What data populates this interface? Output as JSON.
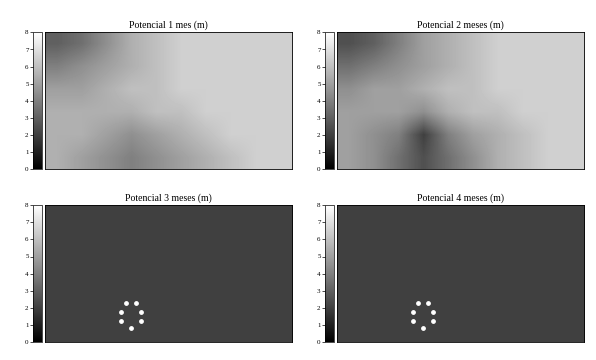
{
  "chart_data": [
    {
      "type": "heatmap",
      "title": "Potencial 1 mes (m)",
      "tick_labels": false,
      "cells": [
        [
          3.0,
          3.5,
          4.5,
          5.5,
          6.0,
          6.5,
          6.5,
          6.5,
          6.5,
          6.5
        ],
        [
          4.0,
          4.5,
          5.0,
          5.5,
          6.0,
          6.5,
          6.5,
          6.5,
          6.5,
          6.5
        ],
        [
          5.0,
          5.0,
          5.5,
          6.0,
          6.0,
          6.5,
          6.5,
          6.5,
          6.5,
          6.5
        ],
        [
          5.5,
          5.5,
          5.5,
          5.5,
          6.0,
          6.0,
          6.5,
          6.5,
          6.5,
          6.5
        ],
        [
          5.5,
          5.5,
          5.0,
          4.5,
          5.0,
          5.5,
          6.0,
          6.5,
          6.5,
          6.5
        ],
        [
          5.5,
          5.0,
          4.5,
          4.0,
          4.5,
          5.0,
          5.5,
          6.0,
          6.5,
          6.5
        ]
      ],
      "colorbar": {
        "range": [
          0,
          8
        ],
        "ticks": [
          0,
          1,
          2,
          3,
          4,
          5,
          6,
          7,
          8
        ]
      }
    },
    {
      "type": "heatmap",
      "title": "Potencial 2 meses (m)",
      "tick_labels": false,
      "cells": [
        [
          2.5,
          3.0,
          4.0,
          5.0,
          5.5,
          6.0,
          6.5,
          6.5,
          6.5,
          6.5
        ],
        [
          3.5,
          4.0,
          4.5,
          5.0,
          5.5,
          6.0,
          6.5,
          6.5,
          6.5,
          6.5
        ],
        [
          4.5,
          5.0,
          5.0,
          5.5,
          6.0,
          6.0,
          6.5,
          6.5,
          6.5,
          6.5
        ],
        [
          5.0,
          5.0,
          5.0,
          4.5,
          5.5,
          6.0,
          6.0,
          6.5,
          6.5,
          6.5
        ],
        [
          5.0,
          4.5,
          4.0,
          2.0,
          4.0,
          5.0,
          5.5,
          6.0,
          6.5,
          6.5
        ],
        [
          5.0,
          4.5,
          3.5,
          2.5,
          3.5,
          4.5,
          5.5,
          6.0,
          6.5,
          6.5
        ]
      ],
      "colorbar": {
        "range": [
          0,
          8
        ],
        "ticks": [
          0,
          1,
          2,
          3,
          4,
          5,
          6,
          7,
          8
        ]
      }
    },
    {
      "type": "heatmap",
      "title": "Potencial 3 meses (m)",
      "tick_labels": false,
      "cells": [
        [
          2.0,
          2.0,
          2.0,
          2.0,
          2.0,
          2.0,
          2.0,
          2.0,
          2.0,
          2.0
        ],
        [
          2.0,
          2.0,
          2.0,
          2.0,
          2.0,
          2.0,
          2.0,
          2.0,
          2.0,
          2.0
        ],
        [
          2.0,
          2.0,
          2.0,
          2.0,
          2.0,
          2.0,
          2.0,
          2.0,
          2.0,
          2.0
        ],
        [
          2.0,
          2.0,
          2.0,
          2.0,
          2.0,
          2.0,
          2.0,
          2.0,
          2.0,
          2.0
        ],
        [
          2.0,
          2.0,
          2.0,
          2.0,
          2.0,
          2.0,
          2.0,
          2.0,
          2.0,
          2.0
        ],
        [
          2.0,
          2.0,
          2.0,
          2.0,
          2.0,
          2.0,
          2.0,
          2.0,
          2.0,
          2.0
        ]
      ],
      "points": {
        "x": [
          2.8,
          3.2,
          2.6,
          3.4,
          2.6,
          3.4,
          3.0
        ],
        "y": [
          3.8,
          3.8,
          4.2,
          4.2,
          4.6,
          4.6,
          4.9
        ],
        "color": "#ffffff",
        "marker": "o"
      },
      "colorbar": {
        "range": [
          0,
          8
        ],
        "ticks": [
          0,
          1,
          2,
          3,
          4,
          5,
          6,
          7,
          8
        ]
      }
    },
    {
      "type": "heatmap",
      "title": "Potencial 4 meses (m)",
      "tick_labels": false,
      "cells": [
        [
          2.0,
          2.0,
          2.0,
          2.0,
          2.0,
          2.0,
          2.0,
          2.0,
          2.0,
          2.0
        ],
        [
          2.0,
          2.0,
          2.0,
          2.0,
          2.0,
          2.0,
          2.0,
          2.0,
          2.0,
          2.0
        ],
        [
          2.0,
          2.0,
          2.0,
          2.0,
          2.0,
          2.0,
          2.0,
          2.0,
          2.0,
          2.0
        ],
        [
          2.0,
          2.0,
          2.0,
          2.0,
          2.0,
          2.0,
          2.0,
          2.0,
          2.0,
          2.0
        ],
        [
          2.0,
          2.0,
          2.0,
          2.0,
          2.0,
          2.0,
          2.0,
          2.0,
          2.0,
          2.0
        ],
        [
          2.0,
          2.0,
          2.0,
          2.0,
          2.0,
          2.0,
          2.0,
          2.0,
          2.0,
          2.0
        ]
      ],
      "points": {
        "x": [
          2.8,
          3.2,
          2.6,
          3.4,
          2.6,
          3.4,
          3.0
        ],
        "y": [
          3.8,
          3.8,
          4.2,
          4.2,
          4.6,
          4.6,
          4.9
        ],
        "color": "#ffffff",
        "marker": "o"
      },
      "colorbar": {
        "range": [
          0,
          8
        ],
        "ticks": [
          0,
          1,
          2,
          3,
          4,
          5,
          6,
          7,
          8
        ]
      }
    }
  ]
}
